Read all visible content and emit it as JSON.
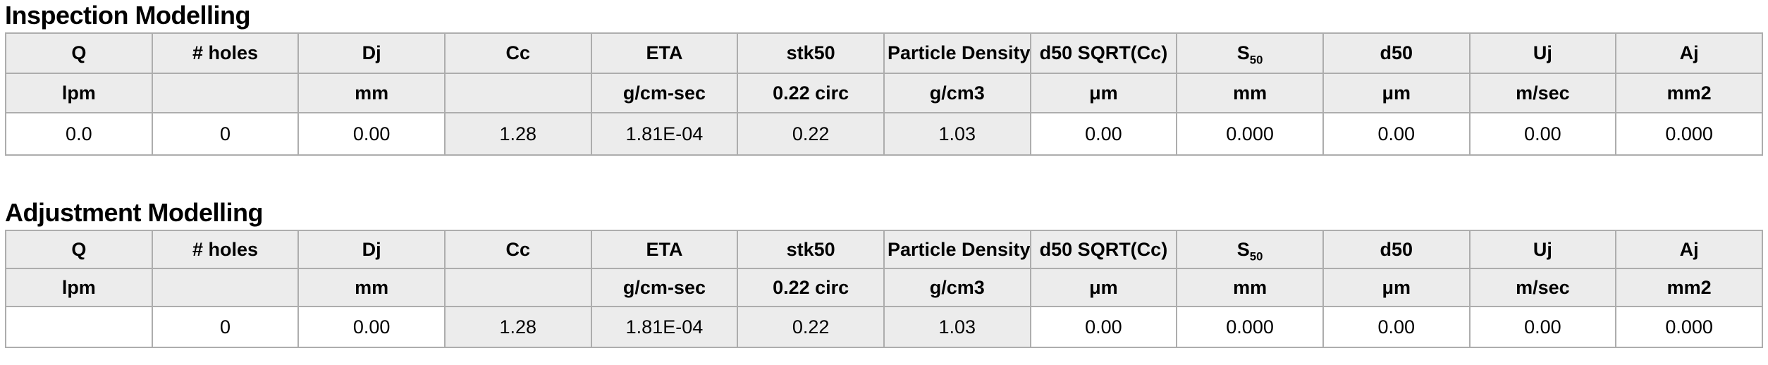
{
  "colors": {
    "page_background": "#ffffff",
    "header_cell_background": "#ececec",
    "computed_cell_background": "#ececec",
    "input_cell_background": "#ffffff",
    "inner_grid_line": "#adadad",
    "outer_border": "#8f8f8f",
    "text": "#000000"
  },
  "tables": [
    {
      "title": "Inspection Modelling",
      "columns": [
        {
          "id": "q",
          "header": "Q",
          "unit": "lpm"
        },
        {
          "id": "num-holes",
          "header": "# holes",
          "unit": ""
        },
        {
          "id": "dj",
          "header": "Dj",
          "unit": "mm"
        },
        {
          "id": "cc",
          "header": "Cc",
          "unit": ""
        },
        {
          "id": "eta",
          "header": "ETA",
          "unit": "g/cm-sec"
        },
        {
          "id": "stk50",
          "header": "stk50",
          "unit": "0.22 circ"
        },
        {
          "id": "particle-density",
          "header": "Particle Density",
          "unit": "g/cm3"
        },
        {
          "id": "d50-sqrt-cc",
          "header": "d50 SQRT(Cc)",
          "unit": "μm"
        },
        {
          "id": "s50",
          "header": "S",
          "header_sub": "50",
          "unit": "mm"
        },
        {
          "id": "d50",
          "header": "d50",
          "unit": "μm"
        },
        {
          "id": "uj",
          "header": "Uj",
          "unit": "m/sec"
        },
        {
          "id": "aj",
          "header": "Aj",
          "unit": "mm2"
        }
      ],
      "values": [
        {
          "text": "0.0",
          "shaded": false
        },
        {
          "text": "0",
          "shaded": false
        },
        {
          "text": "0.00",
          "shaded": false
        },
        {
          "text": "1.28",
          "shaded": true
        },
        {
          "text": "1.81E-04",
          "shaded": true
        },
        {
          "text": "0.22",
          "shaded": true
        },
        {
          "text": "1.03",
          "shaded": true
        },
        {
          "text": "0.00",
          "shaded": false
        },
        {
          "text": "0.000",
          "shaded": false
        },
        {
          "text": "0.00",
          "shaded": false
        },
        {
          "text": "0.00",
          "shaded": false
        },
        {
          "text": "0.000",
          "shaded": false
        }
      ]
    },
    {
      "title": "Adjustment Modelling",
      "columns": [
        {
          "id": "q",
          "header": "Q",
          "unit": "lpm"
        },
        {
          "id": "num-holes",
          "header": "# holes",
          "unit": ""
        },
        {
          "id": "dj",
          "header": "Dj",
          "unit": "mm"
        },
        {
          "id": "cc",
          "header": "Cc",
          "unit": ""
        },
        {
          "id": "eta",
          "header": "ETA",
          "unit": "g/cm-sec"
        },
        {
          "id": "stk50",
          "header": "stk50",
          "unit": "0.22 circ"
        },
        {
          "id": "particle-density",
          "header": "Particle Density",
          "unit": "g/cm3"
        },
        {
          "id": "d50-sqrt-cc",
          "header": "d50 SQRT(Cc)",
          "unit": "μm"
        },
        {
          "id": "s50",
          "header": "S",
          "header_sub": "50",
          "unit": "mm"
        },
        {
          "id": "d50",
          "header": "d50",
          "unit": "μm"
        },
        {
          "id": "uj",
          "header": "Uj",
          "unit": "m/sec"
        },
        {
          "id": "aj",
          "header": "Aj",
          "unit": "mm2"
        }
      ],
      "values": [
        {
          "text": "",
          "shaded": false
        },
        {
          "text": "0",
          "shaded": false
        },
        {
          "text": "0.00",
          "shaded": false
        },
        {
          "text": "1.28",
          "shaded": true
        },
        {
          "text": "1.81E-04",
          "shaded": true
        },
        {
          "text": "0.22",
          "shaded": true
        },
        {
          "text": "1.03",
          "shaded": true
        },
        {
          "text": "0.00",
          "shaded": false
        },
        {
          "text": "0.000",
          "shaded": false
        },
        {
          "text": "0.00",
          "shaded": false
        },
        {
          "text": "0.00",
          "shaded": false
        },
        {
          "text": "0.000",
          "shaded": false
        }
      ]
    }
  ]
}
